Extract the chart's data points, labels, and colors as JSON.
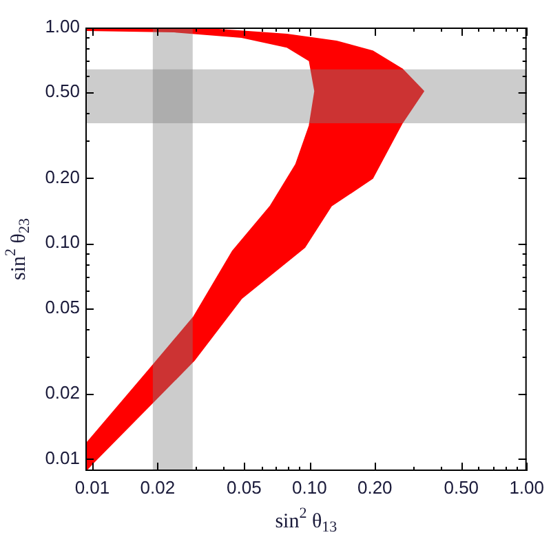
{
  "chart_data": {
    "type": "area",
    "xlabel": "sin$^{2}$ θ$_{13}$",
    "ylabel": "sin$^{2}$ θ$_{23}$",
    "log": "xy",
    "grid": false,
    "legend": false,
    "xlim": [
      0.0093,
      1.0
    ],
    "ylim": [
      0.0088,
      1.0
    ],
    "xticks": [
      0.01,
      0.02,
      {
        "value": 0.03,
        "label": null
      },
      {
        "value": 0.04,
        "label": null
      },
      0.05,
      {
        "value": 0.06,
        "label": null
      },
      {
        "value": 0.07,
        "label": null
      },
      {
        "value": 0.08,
        "label": null
      },
      {
        "value": 0.09,
        "label": null
      },
      {
        "value": 0.1,
        "label": "0.10"
      },
      {
        "value": 0.2,
        "label": "0.20"
      },
      {
        "value": 0.3,
        "label": null
      },
      {
        "value": 0.4,
        "label": null
      },
      {
        "value": 0.5,
        "label": "0.50"
      },
      {
        "value": 0.6,
        "label": null
      },
      {
        "value": 0.7,
        "label": null
      },
      {
        "value": 0.8,
        "label": null
      },
      {
        "value": 0.9,
        "label": null
      },
      {
        "value": 1.0,
        "label": "1.00"
      }
    ],
    "yticks": [
      0.01,
      0.02,
      {
        "value": 0.03,
        "label": null
      },
      {
        "value": 0.04,
        "label": null
      },
      0.05,
      {
        "value": 0.06,
        "label": null
      },
      {
        "value": 0.07,
        "label": null
      },
      {
        "value": 0.08,
        "label": null
      },
      {
        "value": 0.09,
        "label": null
      },
      {
        "value": 0.1,
        "label": "0.10"
      },
      {
        "value": 0.2,
        "label": "0.20"
      },
      {
        "value": 0.3,
        "label": null
      },
      {
        "value": 0.4,
        "label": null
      },
      {
        "value": 0.5,
        "label": "0.50"
      },
      {
        "value": 0.6,
        "label": null
      },
      {
        "value": 0.7,
        "label": null
      },
      {
        "value": 0.8,
        "label": null
      },
      {
        "value": 0.9,
        "label": null
      },
      {
        "value": 1.0,
        "label": "1.00"
      }
    ],
    "series": [
      {
        "color": "#ff0000",
        "x": [
          0.0094,
          0.01,
          0.0187,
          0.0294,
          0.0487,
          0.095,
          0.126,
          0.195,
          0.267,
          0.335,
          0.267,
          0.195,
          0.133,
          0.0787,
          0.0383,
          0.0094,
          0.0094,
          0.0237,
          0.0487,
          0.0787,
          0.1,
          0.106,
          0.1,
          0.0866,
          0.0662,
          0.0442,
          0.0294,
          0.0187,
          0.0094
        ],
        "values": [
          0.0089,
          0.0095,
          0.018,
          0.0286,
          0.0556,
          0.0957,
          0.149,
          0.2,
          0.361,
          0.507,
          0.642,
          0.778,
          0.863,
          0.929,
          0.978,
          1.0,
          0.971,
          0.957,
          0.902,
          0.813,
          0.702,
          0.507,
          0.351,
          0.232,
          0.149,
          0.0916,
          0.0457,
          0.0266,
          0.0118
        ]
      }
    ],
    "bands": [
      {
        "axis": "x",
        "from": 0.019,
        "to": 0.029,
        "color": "#808080"
      },
      {
        "axis": "y",
        "from": 0.36,
        "to": 0.64,
        "color": "#808080"
      }
    ]
  }
}
